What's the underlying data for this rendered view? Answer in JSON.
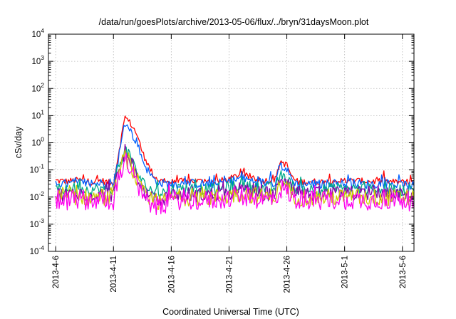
{
  "chart_data": {
    "type": "line",
    "title": "/data/run/goesPlots/archive/2013-05-06/flux/../bryn/31daysMoon.plot",
    "xlabel": "Coordinated Universal Time (UTC)",
    "ylabel": "cSv/day",
    "y_scale": "log",
    "grid": true,
    "legend": "none",
    "xlim": [
      "2013-04-05T09:00",
      "2013-05-07T00:00"
    ],
    "ylim": [
      0.0001,
      10000
    ],
    "x_ticks": [
      {
        "date": "2013-04-06",
        "label": "2013-4-6"
      },
      {
        "date": "2013-04-11",
        "label": "2013-4-11"
      },
      {
        "date": "2013-04-16",
        "label": "2013-4-16"
      },
      {
        "date": "2013-04-21",
        "label": "2013-4-21"
      },
      {
        "date": "2013-04-26",
        "label": "2013-4-26"
      },
      {
        "date": "2013-05-01",
        "label": "2013-5-1"
      },
      {
        "date": "2013-05-06",
        "label": "2013-5-6"
      }
    ],
    "y_ticks": [
      {
        "value": 0.0001,
        "base": "10",
        "exp": "-4"
      },
      {
        "value": 0.001,
        "base": "10",
        "exp": "-3"
      },
      {
        "value": 0.01,
        "base": "10",
        "exp": "-2"
      },
      {
        "value": 0.1,
        "base": "10",
        "exp": "-1"
      },
      {
        "value": 1,
        "base": "10",
        "exp": "0"
      },
      {
        "value": 10,
        "base": "10",
        "exp": "1"
      },
      {
        "value": 100,
        "base": "10",
        "exp": "2"
      },
      {
        "value": 1000,
        "base": "10",
        "exp": "3"
      },
      {
        "value": 10000,
        "base": "10",
        "exp": "4"
      }
    ],
    "x": [
      "2013-04-06",
      "2013-04-07",
      "2013-04-08",
      "2013-04-09",
      "2013-04-10",
      "2013-04-11",
      "2013-04-11T12:00",
      "2013-04-12",
      "2013-04-12T12:00",
      "2013-04-13",
      "2013-04-13T12:00",
      "2013-04-14",
      "2013-04-14T12:00",
      "2013-04-15",
      "2013-04-16",
      "2013-04-17",
      "2013-04-18",
      "2013-04-19",
      "2013-04-20",
      "2013-04-21",
      "2013-04-22",
      "2013-04-23",
      "2013-04-24",
      "2013-04-25",
      "2013-04-25T12:00",
      "2013-04-26",
      "2013-04-26T12:00",
      "2013-04-27",
      "2013-04-28",
      "2013-04-29",
      "2013-04-30",
      "2013-05-01",
      "2013-05-02",
      "2013-05-03",
      "2013-05-04",
      "2013-05-05",
      "2013-05-06",
      "2013-05-07"
    ],
    "series": [
      {
        "color": "#ff0000",
        "values": [
          0.04,
          0.038,
          0.042,
          0.036,
          0.04,
          0.03,
          0.6,
          9,
          5,
          2.2,
          0.45,
          0.15,
          0.06,
          0.04,
          0.035,
          0.038,
          0.04,
          0.036,
          0.038,
          0.045,
          0.07,
          0.05,
          0.04,
          0.045,
          0.2,
          0.15,
          0.05,
          0.035,
          0.038,
          0.036,
          0.04,
          0.038,
          0.04,
          0.037,
          0.039,
          0.036,
          0.035,
          0.03
        ]
      },
      {
        "color": "#0060ff",
        "values": [
          0.032,
          0.03,
          0.034,
          0.03,
          0.033,
          0.025,
          0.4,
          5,
          2.5,
          1.1,
          0.25,
          0.09,
          0.045,
          0.032,
          0.03,
          0.031,
          0.032,
          0.03,
          0.031,
          0.036,
          0.05,
          0.04,
          0.033,
          0.036,
          0.15,
          0.1,
          0.04,
          0.03,
          0.031,
          0.029,
          0.032,
          0.031,
          0.032,
          0.03,
          0.031,
          0.029,
          0.028,
          0.026
        ]
      },
      {
        "color": "#00aa88",
        "values": [
          0.02,
          0.019,
          0.021,
          0.019,
          0.02,
          0.018,
          0.15,
          0.6,
          0.25,
          0.09,
          0.035,
          0.022,
          0.016,
          0.014,
          0.02,
          0.021,
          0.02,
          0.019,
          0.02,
          0.022,
          0.028,
          0.024,
          0.021,
          0.022,
          0.06,
          0.045,
          0.025,
          0.019,
          0.02,
          0.019,
          0.021,
          0.02,
          0.021,
          0.019,
          0.02,
          0.019,
          0.018,
          0.017
        ]
      },
      {
        "color": "#8800aa",
        "values": [
          0.013,
          0.012,
          0.014,
          0.012,
          0.013,
          0.012,
          0.1,
          0.45,
          0.2,
          0.06,
          0.02,
          0.01,
          0.008,
          0.007,
          0.012,
          0.013,
          0.012,
          0.012,
          0.013,
          0.014,
          0.018,
          0.015,
          0.013,
          0.014,
          0.04,
          0.03,
          0.016,
          0.012,
          0.013,
          0.012,
          0.013,
          0.013,
          0.013,
          0.012,
          0.013,
          0.012,
          0.012,
          0.011
        ]
      },
      {
        "color": "#cccc00",
        "values": [
          0.01,
          0.0095,
          0.011,
          0.0095,
          0.01,
          0.0095,
          0.08,
          0.32,
          0.14,
          0.045,
          0.015,
          0.008,
          0.0065,
          0.006,
          0.0095,
          0.01,
          0.0095,
          0.0095,
          0.01,
          0.011,
          0.014,
          0.012,
          0.01,
          0.011,
          0.03,
          0.022,
          0.012,
          0.0095,
          0.01,
          0.0095,
          0.01,
          0.01,
          0.01,
          0.0095,
          0.01,
          0.0095,
          0.0095,
          0.009
        ]
      },
      {
        "color": "#ff00ee",
        "values": [
          0.008,
          0.0075,
          0.0085,
          0.0075,
          0.008,
          0.0075,
          0.06,
          0.25,
          0.1,
          0.03,
          0.01,
          0.006,
          0.0048,
          0.0045,
          0.0075,
          0.008,
          0.0075,
          0.0075,
          0.008,
          0.0085,
          0.011,
          0.009,
          0.008,
          0.0085,
          0.02,
          0.016,
          0.009,
          0.0075,
          0.008,
          0.0075,
          0.008,
          0.008,
          0.008,
          0.0075,
          0.008,
          0.0075,
          0.0075,
          0.007
        ]
      }
    ]
  }
}
